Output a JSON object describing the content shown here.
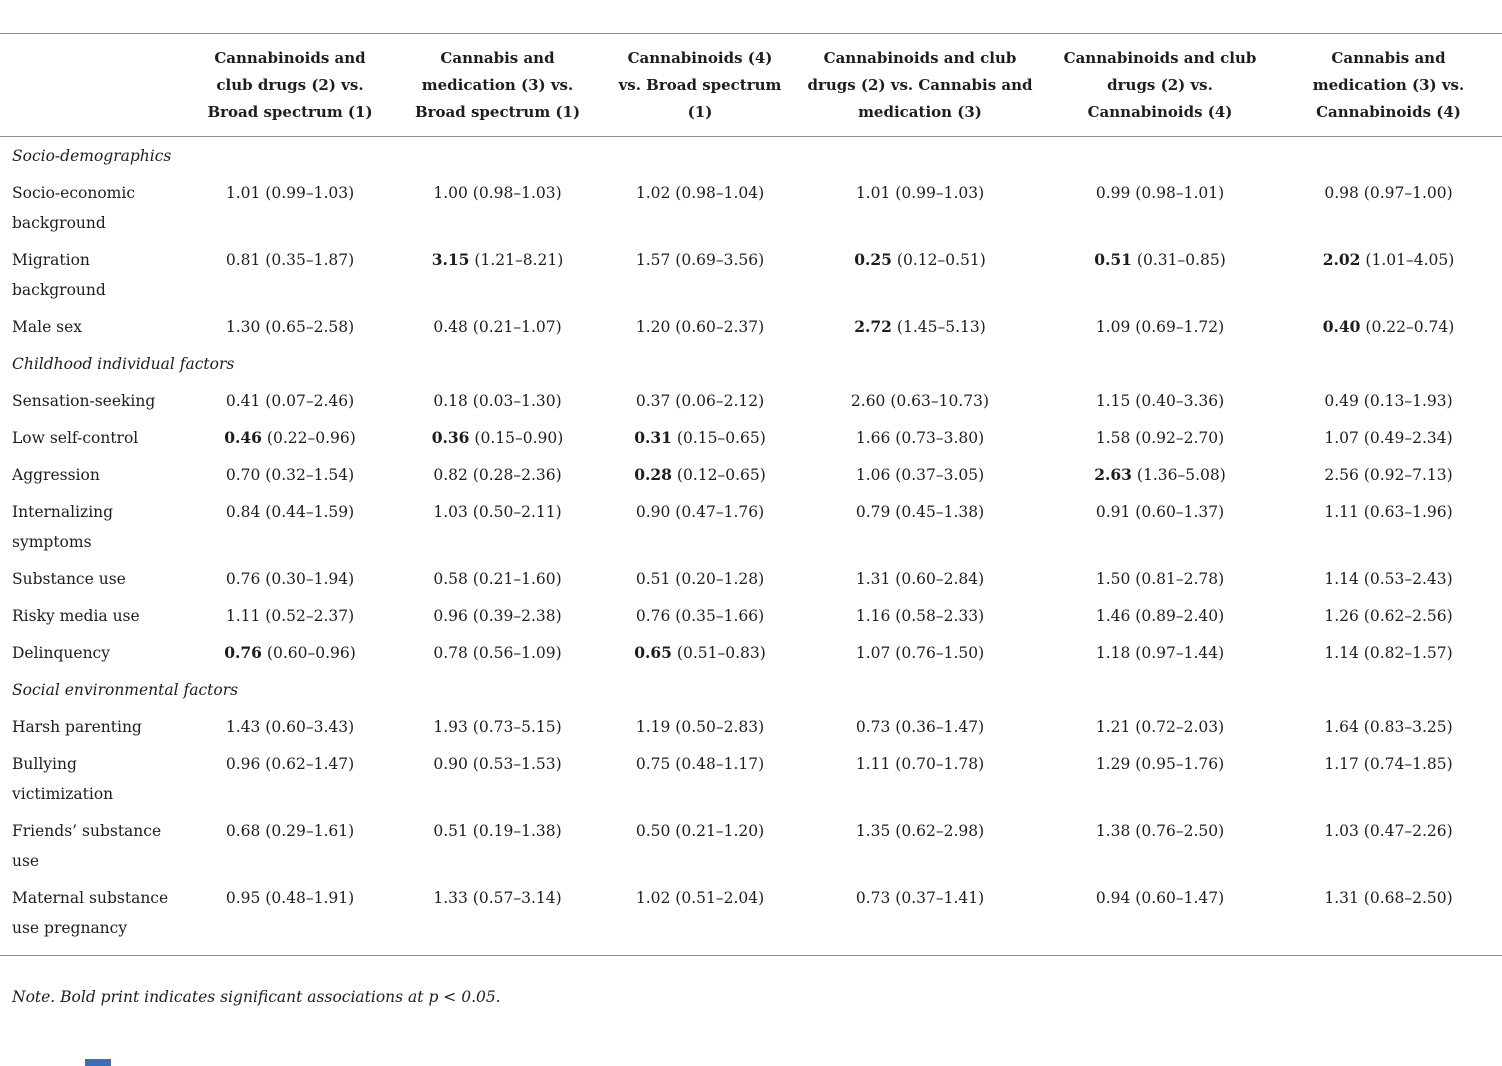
{
  "colors": {
    "rule_gray": "#8f8f8f",
    "text_color": "#1d1d1d",
    "bottom_bar_blue": "#3c6eb4"
  },
  "note": "Note. Bold print indicates significant associations at p < 0.05.",
  "table": {
    "columns": [
      "Cannabinoids and club drugs (2) vs. Broad spectrum (1)",
      "Cannabis and medication (3) vs. Broad spectrum (1)",
      "Cannabinoids (4) vs. Broad spectrum (1)",
      "Cannabinoids and club drugs (2) vs. Cannabis and medication (3)",
      "Cannabinoids and club drugs (2) vs. Cannabinoids (4)",
      "Cannabis and medication (3) vs. Cannabinoids (4)"
    ],
    "sections": [
      {
        "title": "Socio-demographics",
        "rows": [
          {
            "label": "Socio-economic background",
            "cells": [
              {
                "or": "1.01",
                "ci": "(0.99–1.03)",
                "sig": false
              },
              {
                "or": "1.00",
                "ci": "(0.98–1.03)",
                "sig": false
              },
              {
                "or": "1.02",
                "ci": "(0.98–1.04)",
                "sig": false
              },
              {
                "or": "1.01",
                "ci": "(0.99–1.03)",
                "sig": false
              },
              {
                "or": "0.99",
                "ci": "(0.98–1.01)",
                "sig": false
              },
              {
                "or": "0.98",
                "ci": "(0.97–1.00)",
                "sig": false
              }
            ]
          },
          {
            "label": "Migration background",
            "cells": [
              {
                "or": "0.81",
                "ci": "(0.35–1.87)",
                "sig": false
              },
              {
                "or": "3.15",
                "ci": "(1.21–8.21)",
                "sig": true
              },
              {
                "or": "1.57",
                "ci": "(0.69–3.56)",
                "sig": false
              },
              {
                "or": "0.25",
                "ci": "(0.12–0.51)",
                "sig": true
              },
              {
                "or": "0.51",
                "ci": "(0.31–0.85)",
                "sig": true
              },
              {
                "or": "2.02",
                "ci": "(1.01–4.05)",
                "sig": true
              }
            ]
          },
          {
            "label": "Male sex",
            "cells": [
              {
                "or": "1.30",
                "ci": "(0.65–2.58)",
                "sig": false
              },
              {
                "or": "0.48",
                "ci": "(0.21–1.07)",
                "sig": false
              },
              {
                "or": "1.20",
                "ci": "(0.60–2.37)",
                "sig": false
              },
              {
                "or": "2.72",
                "ci": "(1.45–5.13)",
                "sig": true
              },
              {
                "or": "1.09",
                "ci": "(0.69–1.72)",
                "sig": false
              },
              {
                "or": "0.40",
                "ci": "(0.22–0.74)",
                "sig": true
              }
            ]
          }
        ]
      },
      {
        "title": "Childhood individual factors",
        "rows": [
          {
            "label": "Sensation-seeking",
            "cells": [
              {
                "or": "0.41",
                "ci": "(0.07–2.46)",
                "sig": false
              },
              {
                "or": "0.18",
                "ci": "(0.03–1.30)",
                "sig": false
              },
              {
                "or": "0.37",
                "ci": "(0.06–2.12)",
                "sig": false
              },
              {
                "or": "2.60",
                "ci": "(0.63–10.73)",
                "sig": false
              },
              {
                "or": "1.15",
                "ci": "(0.40–3.36)",
                "sig": false
              },
              {
                "or": "0.49",
                "ci": "(0.13–1.93)",
                "sig": false
              }
            ]
          },
          {
            "label": "Low self-control",
            "cells": [
              {
                "or": "0.46",
                "ci": "(0.22–0.96)",
                "sig": true
              },
              {
                "or": "0.36",
                "ci": "(0.15–0.90)",
                "sig": true
              },
              {
                "or": "0.31",
                "ci": "(0.15–0.65)",
                "sig": true
              },
              {
                "or": "1.66",
                "ci": "(0.73–3.80)",
                "sig": false
              },
              {
                "or": "1.58",
                "ci": "(0.92–2.70)",
                "sig": false
              },
              {
                "or": "1.07",
                "ci": "(0.49–2.34)",
                "sig": false
              }
            ]
          },
          {
            "label": "Aggression",
            "cells": [
              {
                "or": "0.70",
                "ci": "(0.32–1.54)",
                "sig": false
              },
              {
                "or": "0.82",
                "ci": "(0.28–2.36)",
                "sig": false
              },
              {
                "or": "0.28",
                "ci": "(0.12–0.65)",
                "sig": true
              },
              {
                "or": "1.06",
                "ci": "(0.37–3.05)",
                "sig": false
              },
              {
                "or": "2.63",
                "ci": "(1.36–5.08)",
                "sig": true
              },
              {
                "or": "2.56",
                "ci": "(0.92–7.13)",
                "sig": false
              }
            ]
          },
          {
            "label": "Internalizing symptoms",
            "cells": [
              {
                "or": "0.84",
                "ci": "(0.44–1.59)",
                "sig": false
              },
              {
                "or": "1.03",
                "ci": "(0.50–2.11)",
                "sig": false
              },
              {
                "or": "0.90",
                "ci": "(0.47–1.76)",
                "sig": false
              },
              {
                "or": "0.79",
                "ci": "(0.45–1.38)",
                "sig": false
              },
              {
                "or": "0.91",
                "ci": "(0.60–1.37)",
                "sig": false
              },
              {
                "or": "1.11",
                "ci": "(0.63–1.96)",
                "sig": false
              }
            ]
          },
          {
            "label": "Substance use",
            "cells": [
              {
                "or": "0.76",
                "ci": "(0.30–1.94)",
                "sig": false
              },
              {
                "or": "0.58",
                "ci": "(0.21–1.60)",
                "sig": false
              },
              {
                "or": "0.51",
                "ci": "(0.20–1.28)",
                "sig": false
              },
              {
                "or": "1.31",
                "ci": "(0.60–2.84)",
                "sig": false
              },
              {
                "or": "1.50",
                "ci": "(0.81–2.78)",
                "sig": false
              },
              {
                "or": "1.14",
                "ci": "(0.53–2.43)",
                "sig": false
              }
            ]
          },
          {
            "label": "Risky media use",
            "cells": [
              {
                "or": "1.11",
                "ci": "(0.52–2.37)",
                "sig": false
              },
              {
                "or": "0.96",
                "ci": "(0.39–2.38)",
                "sig": false
              },
              {
                "or": "0.76",
                "ci": "(0.35–1.66)",
                "sig": false
              },
              {
                "or": "1.16",
                "ci": "(0.58–2.33)",
                "sig": false
              },
              {
                "or": "1.46",
                "ci": "(0.89–2.40)",
                "sig": false
              },
              {
                "or": "1.26",
                "ci": "(0.62–2.56)",
                "sig": false
              }
            ]
          },
          {
            "label": "Delinquency",
            "cells": [
              {
                "or": "0.76",
                "ci": "(0.60–0.96)",
                "sig": true
              },
              {
                "or": "0.78",
                "ci": "(0.56–1.09)",
                "sig": false
              },
              {
                "or": "0.65",
                "ci": "(0.51–0.83)",
                "sig": true
              },
              {
                "or": "1.07",
                "ci": "(0.76–1.50)",
                "sig": false
              },
              {
                "or": "1.18",
                "ci": "(0.97–1.44)",
                "sig": false
              },
              {
                "or": "1.14",
                "ci": "(0.82–1.57)",
                "sig": false
              }
            ]
          }
        ]
      },
      {
        "title": "Social environmental factors",
        "rows": [
          {
            "label": "Harsh parenting",
            "cells": [
              {
                "or": "1.43",
                "ci": "(0.60–3.43)",
                "sig": false
              },
              {
                "or": "1.93",
                "ci": "(0.73–5.15)",
                "sig": false
              },
              {
                "or": "1.19",
                "ci": "(0.50–2.83)",
                "sig": false
              },
              {
                "or": "0.73",
                "ci": "(0.36–1.47)",
                "sig": false
              },
              {
                "or": "1.21",
                "ci": "(0.72–2.03)",
                "sig": false
              },
              {
                "or": "1.64",
                "ci": "(0.83–3.25)",
                "sig": false
              }
            ]
          },
          {
            "label": "Bullying victimization",
            "cells": [
              {
                "or": "0.96",
                "ci": "(0.62–1.47)",
                "sig": false
              },
              {
                "or": "0.90",
                "ci": "(0.53–1.53)",
                "sig": false
              },
              {
                "or": "0.75",
                "ci": "(0.48–1.17)",
                "sig": false
              },
              {
                "or": "1.11",
                "ci": "(0.70–1.78)",
                "sig": false
              },
              {
                "or": "1.29",
                "ci": "(0.95–1.76)",
                "sig": false
              },
              {
                "or": "1.17",
                "ci": "(0.74–1.85)",
                "sig": false
              }
            ]
          },
          {
            "label": "Friends’ substance use",
            "cells": [
              {
                "or": "0.68",
                "ci": "(0.29–1.61)",
                "sig": false
              },
              {
                "or": "0.51",
                "ci": "(0.19–1.38)",
                "sig": false
              },
              {
                "or": "0.50",
                "ci": "(0.21–1.20)",
                "sig": false
              },
              {
                "or": "1.35",
                "ci": "(0.62–2.98)",
                "sig": false
              },
              {
                "or": "1.38",
                "ci": "(0.76–2.50)",
                "sig": false
              },
              {
                "or": "1.03",
                "ci": "(0.47–2.26)",
                "sig": false
              }
            ]
          },
          {
            "label": "Maternal substance use pregnancy",
            "cells": [
              {
                "or": "0.95",
                "ci": "(0.48–1.91)",
                "sig": false
              },
              {
                "or": "1.33",
                "ci": "(0.57–3.14)",
                "sig": false
              },
              {
                "or": "1.02",
                "ci": "(0.51–2.04)",
                "sig": false
              },
              {
                "or": "0.73",
                "ci": "(0.37–1.41)",
                "sig": false
              },
              {
                "or": "0.94",
                "ci": "(0.60–1.47)",
                "sig": false
              },
              {
                "or": "1.31",
                "ci": "(0.68–2.50)",
                "sig": false
              }
            ]
          }
        ]
      }
    ]
  }
}
